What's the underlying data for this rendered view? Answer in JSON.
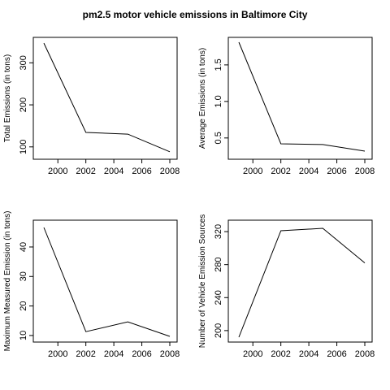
{
  "figure": {
    "title": "pm2.5 motor vehicle emissions in Baltimore City"
  },
  "chart_data": [
    {
      "type": "line",
      "title": "",
      "xlabel": "",
      "ylabel": "Total Emissions (in tons)",
      "x": [
        1999,
        2002,
        2005,
        2008
      ],
      "values": [
        346.8,
        134.3,
        130.4,
        88.3
      ],
      "xlim": [
        1999,
        2008
      ],
      "ylim": [
        88,
        347
      ],
      "x_ticks": [
        2000,
        2002,
        2004,
        2006,
        2008
      ],
      "y_ticks": [
        100,
        200,
        300
      ],
      "grid": false,
      "legend": "none",
      "line_color": "#000000"
    },
    {
      "type": "line",
      "title": "",
      "xlabel": "",
      "ylabel": "Average Emissions (in tons)",
      "x": [
        1999,
        2002,
        2005,
        2008
      ],
      "values": [
        1.81,
        0.42,
        0.41,
        0.32
      ],
      "xlim": [
        1999,
        2008
      ],
      "ylim": [
        0.32,
        1.81
      ],
      "x_ticks": [
        2000,
        2002,
        2004,
        2006,
        2008
      ],
      "y_ticks": [
        0.5,
        1.0,
        1.5
      ],
      "y_tick_labels": [
        "0.5",
        "1.0",
        "1.5"
      ],
      "grid": false,
      "legend": "none",
      "line_color": "#000000"
    },
    {
      "type": "line",
      "title": "",
      "xlabel": "",
      "ylabel": "Maximum Measured Emission (in tons)",
      "x": [
        1999,
        2002,
        2005,
        2008
      ],
      "values": [
        46.6,
        11.3,
        14.6,
        9.7
      ],
      "xlim": [
        1999,
        2008
      ],
      "ylim": [
        9.7,
        46.6
      ],
      "x_ticks": [
        2000,
        2002,
        2004,
        2006,
        2008
      ],
      "y_ticks": [
        10,
        20,
        30,
        40
      ],
      "grid": false,
      "legend": "none",
      "line_color": "#000000"
    },
    {
      "type": "line",
      "title": "",
      "xlabel": "",
      "ylabel": "Number of Vehicle Emission Sources",
      "x": [
        1999,
        2002,
        2005,
        2008
      ],
      "values": [
        192,
        321,
        324,
        282
      ],
      "xlim": [
        1999,
        2008
      ],
      "ylim": [
        192,
        324
      ],
      "x_ticks": [
        2000,
        2002,
        2004,
        2006,
        2008
      ],
      "y_ticks": [
        200,
        240,
        280,
        320
      ],
      "grid": false,
      "legend": "none",
      "line_color": "#000000"
    }
  ]
}
